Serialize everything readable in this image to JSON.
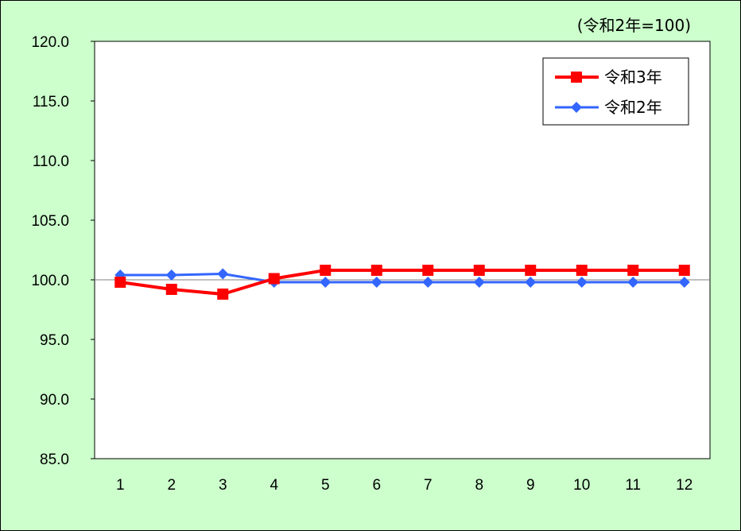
{
  "chart_data": {
    "type": "line",
    "title": "",
    "xlabel": "",
    "ylabel": "",
    "unit_note": "(令和2年=100)",
    "categories": [
      "1",
      "2",
      "3",
      "4",
      "5",
      "6",
      "7",
      "8",
      "9",
      "10",
      "11",
      "12"
    ],
    "ylim": [
      85.0,
      120.0
    ],
    "yticks": [
      "85.0",
      "90.0",
      "95.0",
      "100.0",
      "105.0",
      "110.0",
      "115.0",
      "120.0"
    ],
    "reference_line": 100.0,
    "grid": false,
    "legend_position": "top-right",
    "series": [
      {
        "name": "令和3年",
        "color": "#ff0000",
        "marker": "square",
        "values": [
          99.8,
          99.2,
          98.8,
          100.1,
          100.8,
          100.8,
          100.8,
          100.8,
          100.8,
          100.8,
          100.8,
          100.8
        ]
      },
      {
        "name": "令和2年",
        "color": "#3366ff",
        "marker": "diamond",
        "values": [
          100.4,
          100.4,
          100.5,
          99.8,
          99.8,
          99.8,
          99.8,
          99.8,
          99.8,
          99.8,
          99.8,
          99.8
        ]
      }
    ]
  }
}
